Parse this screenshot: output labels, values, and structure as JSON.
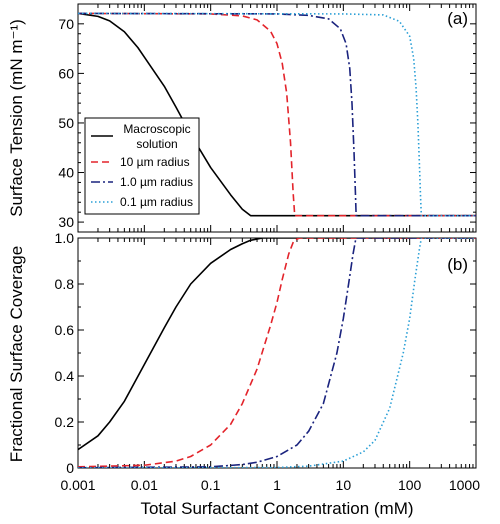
{
  "figure": {
    "xlabel": "Total Surfactant Concentration (mM)",
    "xticks": [
      {
        "value": 0.001,
        "label": "0.001"
      },
      {
        "value": 0.01,
        "label": "0.01"
      },
      {
        "value": 0.1,
        "label": "0.1"
      },
      {
        "value": 1,
        "label": "1"
      },
      {
        "value": 10,
        "label": "10"
      },
      {
        "value": 100,
        "label": "100"
      },
      {
        "value": 1000,
        "label": "1000"
      }
    ]
  },
  "chart_data": [
    {
      "type": "line",
      "panel_label": "(a)",
      "ylabel": "Surface Tension (mN m⁻¹)",
      "x_scale": "log",
      "xlim": [
        0.001,
        1000
      ],
      "ylim": [
        28,
        74
      ],
      "yticks": [
        {
          "value": 30,
          "label": "30"
        },
        {
          "value": 40,
          "label": "40"
        },
        {
          "value": 50,
          "label": "50"
        },
        {
          "value": 60,
          "label": "60"
        },
        {
          "value": 70,
          "label": "70"
        }
      ],
      "legend": {
        "position": "bottom-left"
      },
      "series": [
        {
          "name": "Macroscopic solution",
          "legend_lines": [
            "Macroscopic",
            "solution"
          ],
          "color": "#000000",
          "dash": "solid",
          "points": [
            [
              0.001,
              72.1
            ],
            [
              0.002,
              71.5
            ],
            [
              0.003,
              70.6
            ],
            [
              0.005,
              68.4
            ],
            [
              0.008,
              65.2
            ],
            [
              0.01,
              63.3
            ],
            [
              0.02,
              57.4
            ],
            [
              0.03,
              53.2
            ],
            [
              0.05,
              47.7
            ],
            [
              0.1,
              41.0
            ],
            [
              0.2,
              35.5
            ],
            [
              0.3,
              32.6
            ],
            [
              0.4,
              31.3
            ],
            [
              0.6,
              31.3
            ],
            [
              1,
              31.3
            ],
            [
              10,
              31.3
            ],
            [
              100,
              31.3
            ],
            [
              1000,
              31.3
            ]
          ]
        },
        {
          "name": "10 µm radius",
          "color": "#e3242b",
          "dash": "dashed",
          "points": [
            [
              0.001,
              72.1
            ],
            [
              0.1,
              72.0
            ],
            [
              0.3,
              71.6
            ],
            [
              0.5,
              70.8
            ],
            [
              0.8,
              68.5
            ],
            [
              1.0,
              66.0
            ],
            [
              1.2,
              62.0
            ],
            [
              1.4,
              56.0
            ],
            [
              1.6,
              46.0
            ],
            [
              1.75,
              36.0
            ],
            [
              1.85,
              31.3
            ],
            [
              10,
              31.3
            ],
            [
              100,
              31.3
            ],
            [
              1000,
              31.3
            ]
          ]
        },
        {
          "name": "1.0 µm radius",
          "color": "#1a237e",
          "dash": "dashdot",
          "points": [
            [
              0.001,
              72.1
            ],
            [
              1,
              72.0
            ],
            [
              3,
              71.7
            ],
            [
              6,
              71.0
            ],
            [
              9,
              69.0
            ],
            [
              11,
              66.0
            ],
            [
              12.5,
              61.0
            ],
            [
              13.5,
              54.0
            ],
            [
              14.5,
              44.0
            ],
            [
              15.2,
              36.0
            ],
            [
              15.6,
              31.3
            ],
            [
              100,
              31.3
            ],
            [
              1000,
              31.3
            ]
          ]
        },
        {
          "name": "0.1 µm radius",
          "color": "#2a9fd6",
          "dash": "dotted",
          "points": [
            [
              0.001,
              72.1
            ],
            [
              10,
              72.0
            ],
            [
              40,
              71.8
            ],
            [
              70,
              70.5
            ],
            [
              100,
              67.5
            ],
            [
              115,
              63.0
            ],
            [
              125,
              57.0
            ],
            [
              133,
              50.0
            ],
            [
              140,
              42.0
            ],
            [
              146,
              35.0
            ],
            [
              150,
              31.3
            ],
            [
              1000,
              31.3
            ]
          ]
        }
      ]
    },
    {
      "type": "line",
      "panel_label": "(b)",
      "ylabel": "Fractional Surface Coverage",
      "x_scale": "log",
      "xlim": [
        0.001,
        1000
      ],
      "ylim": [
        0,
        1.0
      ],
      "yticks": [
        {
          "value": 0,
          "label": "0"
        },
        {
          "value": 0.2,
          "label": "0.2"
        },
        {
          "value": 0.4,
          "label": "0.4"
        },
        {
          "value": 0.6,
          "label": "0.6"
        },
        {
          "value": 0.8,
          "label": "0.8"
        },
        {
          "value": 1.0,
          "label": "1.0"
        }
      ],
      "series": [
        {
          "name": "Macroscopic solution",
          "color": "#000000",
          "dash": "solid",
          "points": [
            [
              0.001,
              0.08
            ],
            [
              0.002,
              0.14
            ],
            [
              0.003,
              0.2
            ],
            [
              0.005,
              0.29
            ],
            [
              0.01,
              0.45
            ],
            [
              0.02,
              0.61
            ],
            [
              0.03,
              0.7
            ],
            [
              0.05,
              0.8
            ],
            [
              0.1,
              0.89
            ],
            [
              0.2,
              0.95
            ],
            [
              0.3,
              0.975
            ],
            [
              0.4,
              0.99
            ],
            [
              0.6,
              1.0
            ],
            [
              1,
              1.0
            ],
            [
              10,
              1.0
            ],
            [
              1000,
              1.0
            ]
          ]
        },
        {
          "name": "10 µm radius",
          "color": "#e3242b",
          "dash": "dashed",
          "points": [
            [
              0.001,
              0.005
            ],
            [
              0.01,
              0.012
            ],
            [
              0.03,
              0.03
            ],
            [
              0.05,
              0.05
            ],
            [
              0.1,
              0.1
            ],
            [
              0.2,
              0.19
            ],
            [
              0.3,
              0.28
            ],
            [
              0.5,
              0.43
            ],
            [
              0.8,
              0.62
            ],
            [
              1.0,
              0.72
            ],
            [
              1.2,
              0.82
            ],
            [
              1.5,
              0.93
            ],
            [
              1.8,
              0.99
            ],
            [
              2.2,
              1.0
            ],
            [
              1000,
              1.0
            ]
          ]
        },
        {
          "name": "1.0 µm radius",
          "color": "#1a237e",
          "dash": "dashdot",
          "points": [
            [
              0.001,
              0.001
            ],
            [
              0.1,
              0.005
            ],
            [
              0.3,
              0.015
            ],
            [
              0.5,
              0.025
            ],
            [
              1,
              0.05
            ],
            [
              2,
              0.1
            ],
            [
              3,
              0.16
            ],
            [
              5,
              0.28
            ],
            [
              8,
              0.5
            ],
            [
              10,
              0.65
            ],
            [
              12,
              0.8
            ],
            [
              14,
              0.93
            ],
            [
              15.5,
              1.0
            ],
            [
              1000,
              1.0
            ]
          ]
        },
        {
          "name": "0.1 µm radius",
          "color": "#2a9fd6",
          "dash": "dotted",
          "points": [
            [
              0.001,
              0.0
            ],
            [
              1,
              0.002
            ],
            [
              3,
              0.008
            ],
            [
              10,
              0.03
            ],
            [
              20,
              0.07
            ],
            [
              30,
              0.12
            ],
            [
              50,
              0.26
            ],
            [
              80,
              0.5
            ],
            [
              100,
              0.65
            ],
            [
              120,
              0.82
            ],
            [
              140,
              0.95
            ],
            [
              150,
              1.0
            ],
            [
              1000,
              1.0
            ]
          ]
        }
      ]
    }
  ]
}
